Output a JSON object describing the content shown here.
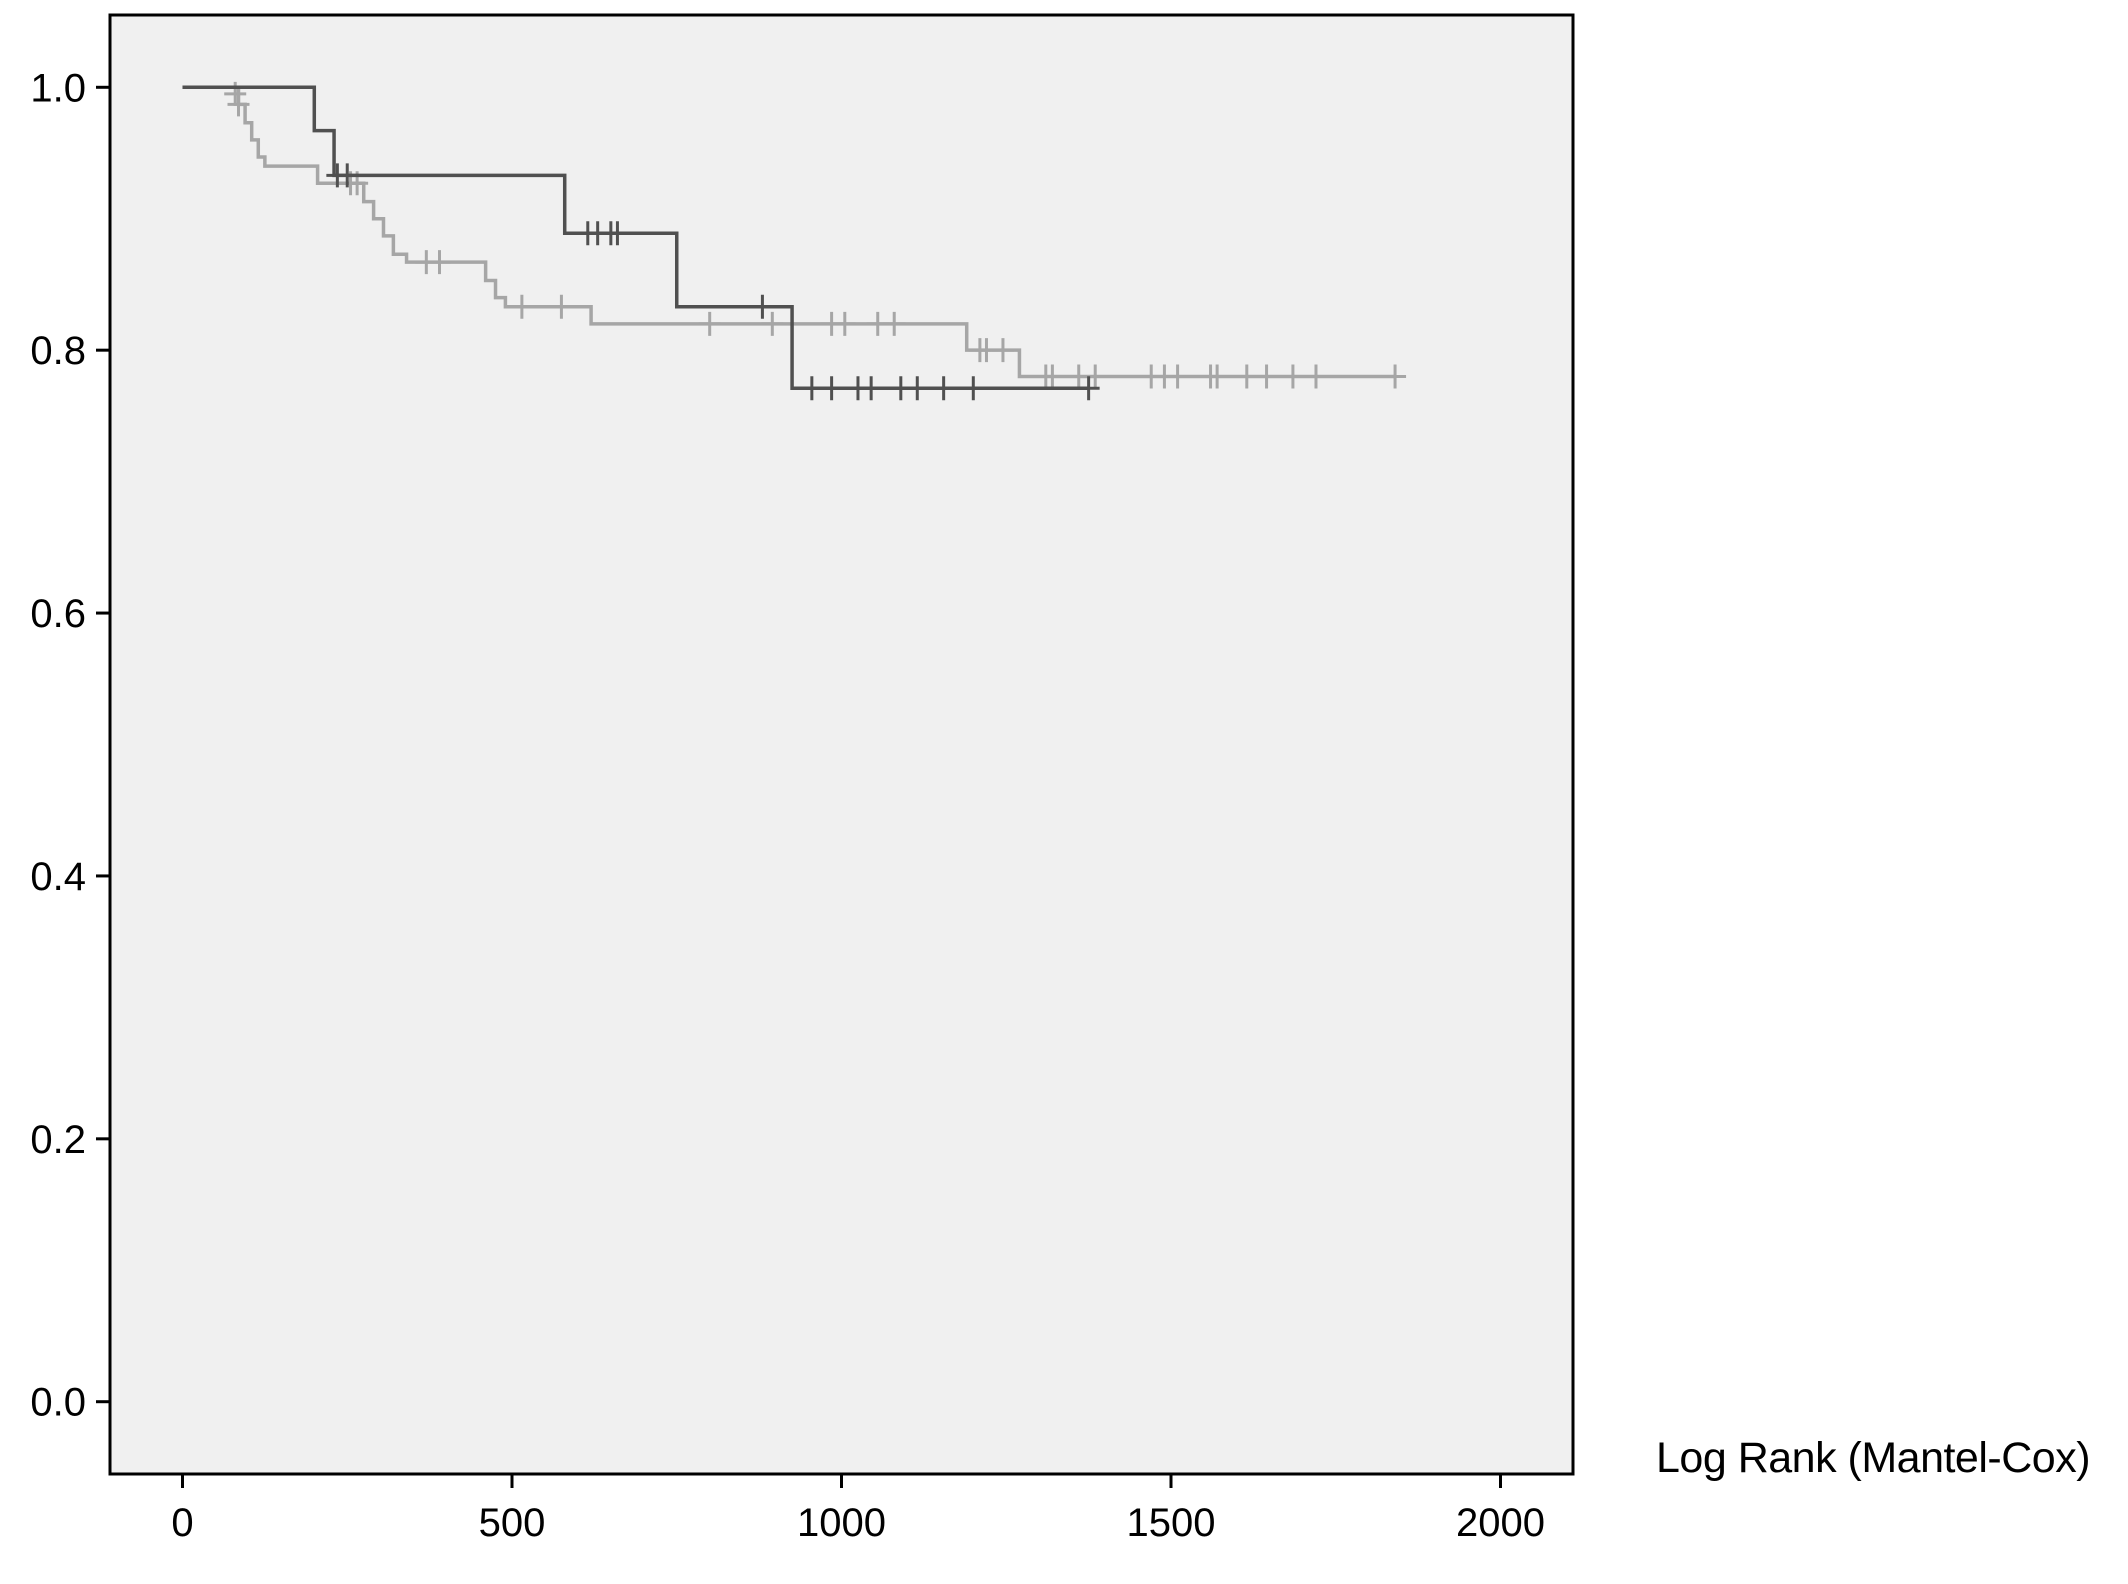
{
  "chart_data": {
    "type": "line",
    "subtype": "kaplan-meier-step",
    "title": "",
    "xlabel": "",
    "ylabel": "",
    "annotation": "Log Rank (Mantel-Cox)",
    "xlim": [
      -110,
      2110
    ],
    "ylim": [
      -0.055,
      1.055
    ],
    "xticks": [
      0,
      500,
      1000,
      1500,
      2000
    ],
    "yticks": [
      0.0,
      0.2,
      0.4,
      0.6,
      0.8,
      1.0
    ],
    "xtick_labels": [
      "0",
      "500",
      "1000",
      "1500",
      "2000"
    ],
    "ytick_labels": [
      "0.0",
      "0.2",
      "0.4",
      "0.6",
      "0.8",
      "1.0"
    ],
    "grid": false,
    "legend": "none",
    "colors": {
      "plot_background": "#f0f0f0",
      "frame": "#000000",
      "page_background": "#ffffff"
    },
    "series": [
      {
        "color": "#a6a6a6",
        "steps": [
          [
            0,
            1.0
          ],
          [
            85,
            0.987
          ],
          [
            95,
            0.973
          ],
          [
            105,
            0.96
          ],
          [
            115,
            0.947
          ],
          [
            125,
            0.94
          ],
          [
            205,
            0.927
          ],
          [
            275,
            0.913
          ],
          [
            290,
            0.9
          ],
          [
            305,
            0.887
          ],
          [
            320,
            0.873
          ],
          [
            340,
            0.867
          ],
          [
            460,
            0.853
          ],
          [
            475,
            0.84
          ],
          [
            490,
            0.833
          ],
          [
            620,
            0.82
          ],
          [
            1190,
            0.8
          ],
          [
            1270,
            0.78
          ],
          [
            1840,
            0.78
          ]
        ],
        "censored": [
          [
            80,
            0.995
          ],
          [
            85,
            0.987
          ],
          [
            255,
            0.927
          ],
          [
            265,
            0.927
          ],
          [
            370,
            0.867
          ],
          [
            390,
            0.867
          ],
          [
            515,
            0.833
          ],
          [
            575,
            0.833
          ],
          [
            800,
            0.82
          ],
          [
            895,
            0.82
          ],
          [
            985,
            0.82
          ],
          [
            1005,
            0.82
          ],
          [
            1055,
            0.82
          ],
          [
            1080,
            0.82
          ],
          [
            1210,
            0.8
          ],
          [
            1220,
            0.8
          ],
          [
            1245,
            0.8
          ],
          [
            1310,
            0.78
          ],
          [
            1320,
            0.78
          ],
          [
            1360,
            0.78
          ],
          [
            1385,
            0.78
          ],
          [
            1470,
            0.78
          ],
          [
            1490,
            0.78
          ],
          [
            1510,
            0.78
          ],
          [
            1560,
            0.78
          ],
          [
            1570,
            0.78
          ],
          [
            1615,
            0.78
          ],
          [
            1645,
            0.78
          ],
          [
            1685,
            0.78
          ],
          [
            1720,
            0.78
          ],
          [
            1840,
            0.78
          ]
        ]
      },
      {
        "color": "#505050",
        "steps": [
          [
            0,
            1.0
          ],
          [
            200,
            0.967
          ],
          [
            230,
            0.933
          ],
          [
            580,
            0.889
          ],
          [
            750,
            0.833
          ],
          [
            925,
            0.771
          ],
          [
            1375,
            0.771
          ]
        ],
        "censored": [
          [
            235,
            0.933
          ],
          [
            250,
            0.933
          ],
          [
            615,
            0.889
          ],
          [
            630,
            0.889
          ],
          [
            650,
            0.889
          ],
          [
            660,
            0.889
          ],
          [
            880,
            0.833
          ],
          [
            955,
            0.771
          ],
          [
            985,
            0.771
          ],
          [
            1025,
            0.771
          ],
          [
            1045,
            0.771
          ],
          [
            1090,
            0.771
          ],
          [
            1115,
            0.771
          ],
          [
            1155,
            0.771
          ],
          [
            1200,
            0.771
          ],
          [
            1375,
            0.771
          ]
        ]
      }
    ]
  }
}
